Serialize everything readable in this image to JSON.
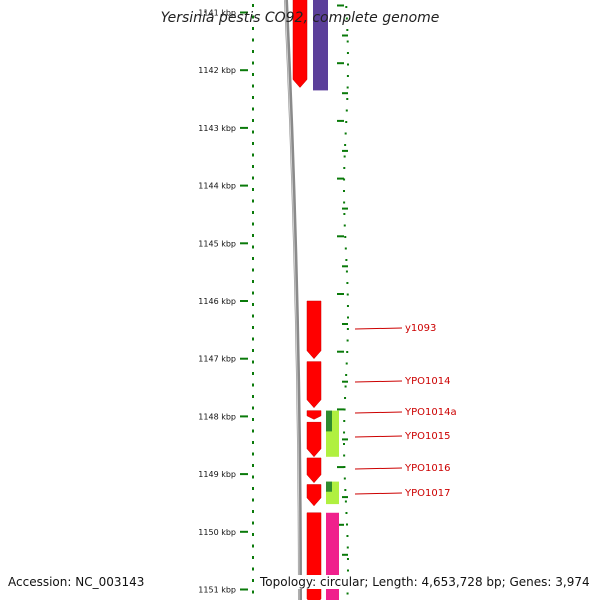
{
  "title": "Yersinia pestis CO92, complete genome",
  "footer": {
    "accession": "Accession: NC_003143",
    "topology": "Topology: circular; Length: 4,653,728 bp; Genes: 3,974"
  },
  "scale": {
    "unit": "kbp",
    "ticks": [
      {
        "kbp": 1141,
        "label": "1141 kbp"
      },
      {
        "kbp": 1142,
        "label": "1142 kbp"
      },
      {
        "kbp": 1143,
        "label": "1143 kbp"
      },
      {
        "kbp": 1144,
        "label": "1144 kbp"
      },
      {
        "kbp": 1145,
        "label": "1145 kbp"
      },
      {
        "kbp": 1146,
        "label": "1146 kbp"
      },
      {
        "kbp": 1147,
        "label": "1147 kbp"
      },
      {
        "kbp": 1148,
        "label": "1148 kbp"
      },
      {
        "kbp": 1149,
        "label": "1149 kbp"
      },
      {
        "kbp": 1150,
        "label": "1150 kbp"
      },
      {
        "kbp": 1151,
        "label": "1151 kbp"
      }
    ]
  },
  "genes": [
    {
      "name": "",
      "track": "forward",
      "start": 1140.3,
      "end": 1142.3,
      "color": "#ff0000"
    },
    {
      "name": "y1093",
      "track": "forward",
      "start": 1146.0,
      "end": 1147.0,
      "color": "#ff0000"
    },
    {
      "name": "YPO1014",
      "track": "forward",
      "start": 1147.05,
      "end": 1147.85,
      "color": "#ff0000"
    },
    {
      "name": "YPO1014a",
      "track": "forward",
      "start": 1147.9,
      "end": 1148.05,
      "color": "#ff0000"
    },
    {
      "name": "YPO1015",
      "track": "forward",
      "start": 1148.1,
      "end": 1148.7,
      "color": "#ff0000"
    },
    {
      "name": "YPO1016",
      "track": "forward",
      "start": 1148.72,
      "end": 1149.15,
      "color": "#ff0000"
    },
    {
      "name": "YPO1017",
      "track": "forward",
      "start": 1149.18,
      "end": 1149.55,
      "color": "#ff0000"
    },
    {
      "name": "",
      "track": "forward",
      "start": 1149.67,
      "end": 1151.3,
      "color": "#ff0000"
    }
  ],
  "features": [
    {
      "track": "inner",
      "start": 1140.3,
      "end": 1142.35,
      "color": "#5b3f9a"
    },
    {
      "track": "inner",
      "start": 1147.9,
      "end": 1148.7,
      "color": "#b0f040"
    },
    {
      "track": "inner",
      "start": 1149.13,
      "end": 1149.52,
      "color": "#b0f040"
    },
    {
      "track": "inner",
      "start": 1149.67,
      "end": 1151.3,
      "color": "#f0208c"
    }
  ],
  "label_order": [
    "y1093",
    "YPO1014",
    "YPO1014a",
    "YPO1015",
    "YPO1016",
    "YPO1017"
  ],
  "colors": {
    "backbone": "#8a8a8a",
    "scale": "#0a7a0a",
    "label": "#cc0000",
    "dark_green": "#2e8b2e"
  }
}
